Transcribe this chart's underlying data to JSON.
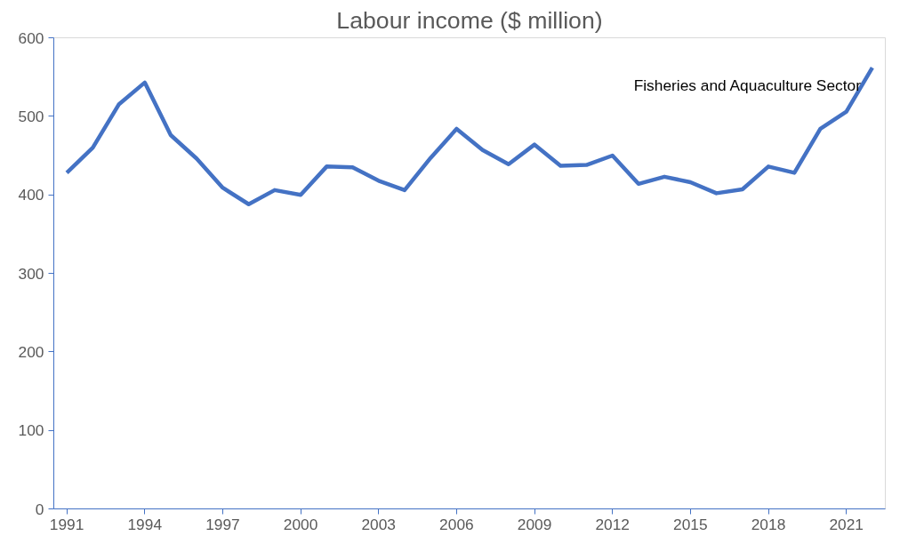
{
  "chart_data": {
    "type": "line",
    "title": "Labour income ($ million)",
    "x": [
      1991,
      1992,
      1993,
      1994,
      1995,
      1996,
      1997,
      1998,
      1999,
      2000,
      2001,
      2002,
      2003,
      2004,
      2005,
      2006,
      2007,
      2008,
      2009,
      2010,
      2011,
      2012,
      2013,
      2014,
      2015,
      2016,
      2017,
      2018,
      2019,
      2020,
      2021,
      2022
    ],
    "series": [
      {
        "name": "Fisheries and Aquaculture Sector",
        "color": "#4472c4",
        "values": [
          428,
          460,
          515,
          543,
          476,
          446,
          409,
          388,
          406,
          400,
          436,
          435,
          418,
          406,
          447,
          484,
          457,
          439,
          464,
          437,
          438,
          450,
          414,
          423,
          416,
          402,
          407,
          436,
          428,
          484,
          506,
          562
        ]
      }
    ],
    "xlim": [
      1990.5,
      2022.5
    ],
    "xticks": [
      1991,
      1994,
      1997,
      2000,
      2003,
      2006,
      2009,
      2012,
      2015,
      2018,
      2021
    ],
    "ylim": [
      0,
      600
    ],
    "yticks": [
      0,
      100,
      200,
      300,
      400,
      500,
      600
    ],
    "grid": false,
    "legend": false,
    "marker": "none",
    "line_style": "solid"
  }
}
